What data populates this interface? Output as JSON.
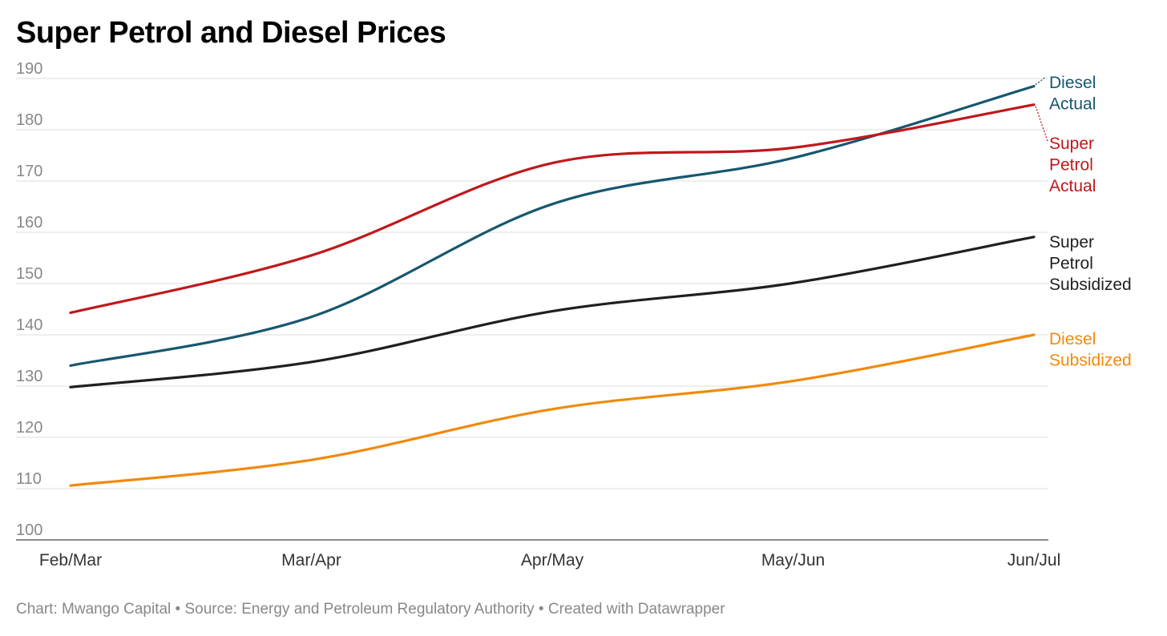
{
  "chart_data": {
    "type": "line",
    "title": "Super Petrol and Diesel Prices",
    "xlabel": "",
    "ylabel": "",
    "categories": [
      "Feb/Mar",
      "Mar/Apr",
      "Apr/May",
      "May/Jun",
      "Jun/Jul"
    ],
    "ylim": [
      100,
      190
    ],
    "yticks": [
      "100",
      "110",
      "120",
      "130",
      "140",
      "150",
      "160",
      "170",
      "180",
      "190"
    ],
    "grid": true,
    "legend": "direct labels at right end of lines",
    "series": [
      {
        "key": "diesel-actual",
        "name": "Diesel Actual",
        "label_lines": [
          "Diesel",
          "Actual"
        ],
        "color": "#16576f",
        "values": [
          134.0,
          143.5,
          165.5,
          174.5,
          188.5
        ]
      },
      {
        "key": "super-petrol-actual",
        "name": "Super Petrol Actual",
        "label_lines": [
          "Super",
          "Petrol",
          "Actual"
        ],
        "color": "#c0181b",
        "values": [
          144.3,
          155.5,
          173.5,
          176.5,
          184.9
        ]
      },
      {
        "key": "super-petrol-subsidized",
        "name": "Super Petrol Subsidized",
        "label_lines": [
          "Super",
          "Petrol",
          "Subsidized"
        ],
        "color": "#1f1f1f",
        "values": [
          129.8,
          134.7,
          144.6,
          150.1,
          159.1
        ]
      },
      {
        "key": "diesel-subsidized",
        "name": "Diesel Subsidized",
        "label_lines": [
          "Diesel",
          "Subsidized"
        ],
        "color": "#f08a0b",
        "values": [
          110.6,
          115.6,
          125.5,
          131.0,
          140.0
        ]
      }
    ]
  },
  "footer": "Chart: Mwango Capital • Source: Energy and Petroleum Regulatory Authority • Created with Datawrapper"
}
